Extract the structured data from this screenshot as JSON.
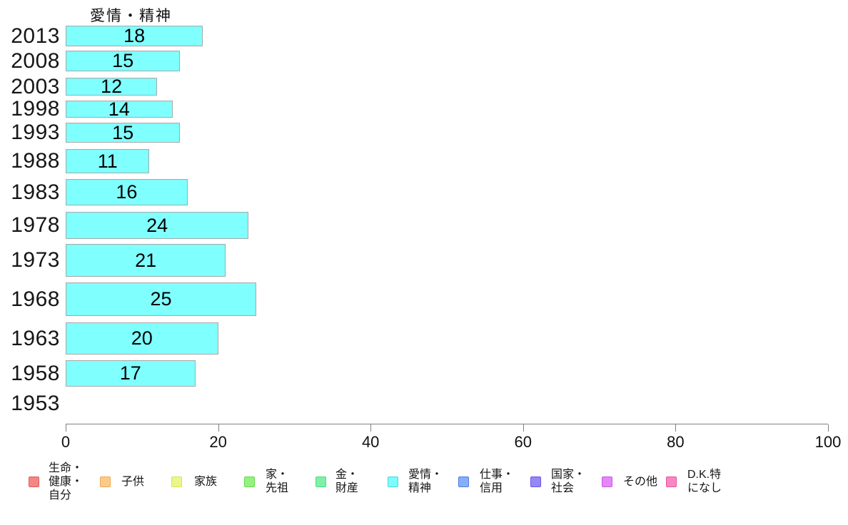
{
  "chart_data": {
    "type": "bar",
    "orientation": "horizontal",
    "title": "愛情・精神",
    "categories": [
      "2013",
      "2008",
      "2003",
      "1998",
      "1993",
      "1988",
      "1983",
      "1978",
      "1973",
      "1968",
      "1963",
      "1958",
      "1953"
    ],
    "values": [
      18,
      15,
      12,
      14,
      15,
      11,
      16,
      24,
      21,
      25,
      20,
      17,
      null
    ],
    "xlabel": "",
    "ylabel": "",
    "xlim": [
      0,
      100
    ],
    "x_ticks": [
      0,
      20,
      40,
      60,
      80,
      100
    ],
    "grid": false,
    "value_labels_shown": true,
    "bar_color": "#80FFFF",
    "bar_border_color": "#A8A8A8",
    "axis_color": "#808080",
    "text_color": "#111111",
    "legend_position": "bottom",
    "legend": [
      {
        "label": "生命・健康・自分",
        "lines": [
          "生命・",
          "健康・",
          "自分"
        ],
        "color": "#F28783",
        "border": "#E25D5D"
      },
      {
        "label": "子供",
        "lines": [
          "子供"
        ],
        "color": "#FBCB88",
        "border": "#EFA953"
      },
      {
        "label": "家族",
        "lines": [
          "家族"
        ],
        "color": "#EAF68D",
        "border": "#D4E457"
      },
      {
        "label": "家・先祖",
        "lines": [
          "家・",
          "先祖"
        ],
        "color": "#97EF82",
        "border": "#5FDE45"
      },
      {
        "label": "金・財産",
        "lines": [
          "金・",
          "財産"
        ],
        "color": "#82EFA7",
        "border": "#45DE7E"
      },
      {
        "label": "愛情・精神",
        "lines": [
          "愛情・",
          "精神"
        ],
        "color": "#80FBFB",
        "border": "#45D8DE"
      },
      {
        "label": "仕事・信用",
        "lines": [
          "仕事・",
          "信用"
        ],
        "color": "#86AFF7",
        "border": "#5377EA"
      },
      {
        "label": "国家・社会",
        "lines": [
          "国家・",
          "社会"
        ],
        "color": "#9488F7",
        "border": "#6A53EA"
      },
      {
        "label": "その他",
        "lines": [
          "その他"
        ],
        "color": "#E388F7",
        "border": "#CB53EA"
      },
      {
        "label": "D.K.特になし",
        "lines": [
          "D.K.特",
          "になし"
        ],
        "color": "#F788C3",
        "border": "#EA5397"
      }
    ],
    "layout": {
      "plot_left": 92,
      "plot_right": 1160,
      "axis_y": 594,
      "tick_label_top": 607,
      "rows": [
        {
          "top": 36,
          "height": 29
        },
        {
          "top": 71,
          "height": 29
        },
        {
          "top": 109,
          "height": 25
        },
        {
          "top": 141,
          "height": 24
        },
        {
          "top": 172,
          "height": 28
        },
        {
          "top": 209,
          "height": 34
        },
        {
          "top": 251,
          "height": 37
        },
        {
          "top": 297,
          "height": 38
        },
        {
          "top": 342,
          "height": 46
        },
        {
          "top": 396,
          "height": 47
        },
        {
          "top": 452,
          "height": 45
        },
        {
          "top": 505,
          "height": 37
        },
        {
          "top": 551,
          "height": 30
        }
      ],
      "legend_square_x": [
        40,
        140,
        240,
        342,
        442,
        543,
        642,
        743,
        843,
        933
      ],
      "legend_text_x": [
        68,
        170,
        272,
        372,
        470,
        572,
        672,
        772,
        873,
        963
      ],
      "legend_center_y": 675
    }
  }
}
